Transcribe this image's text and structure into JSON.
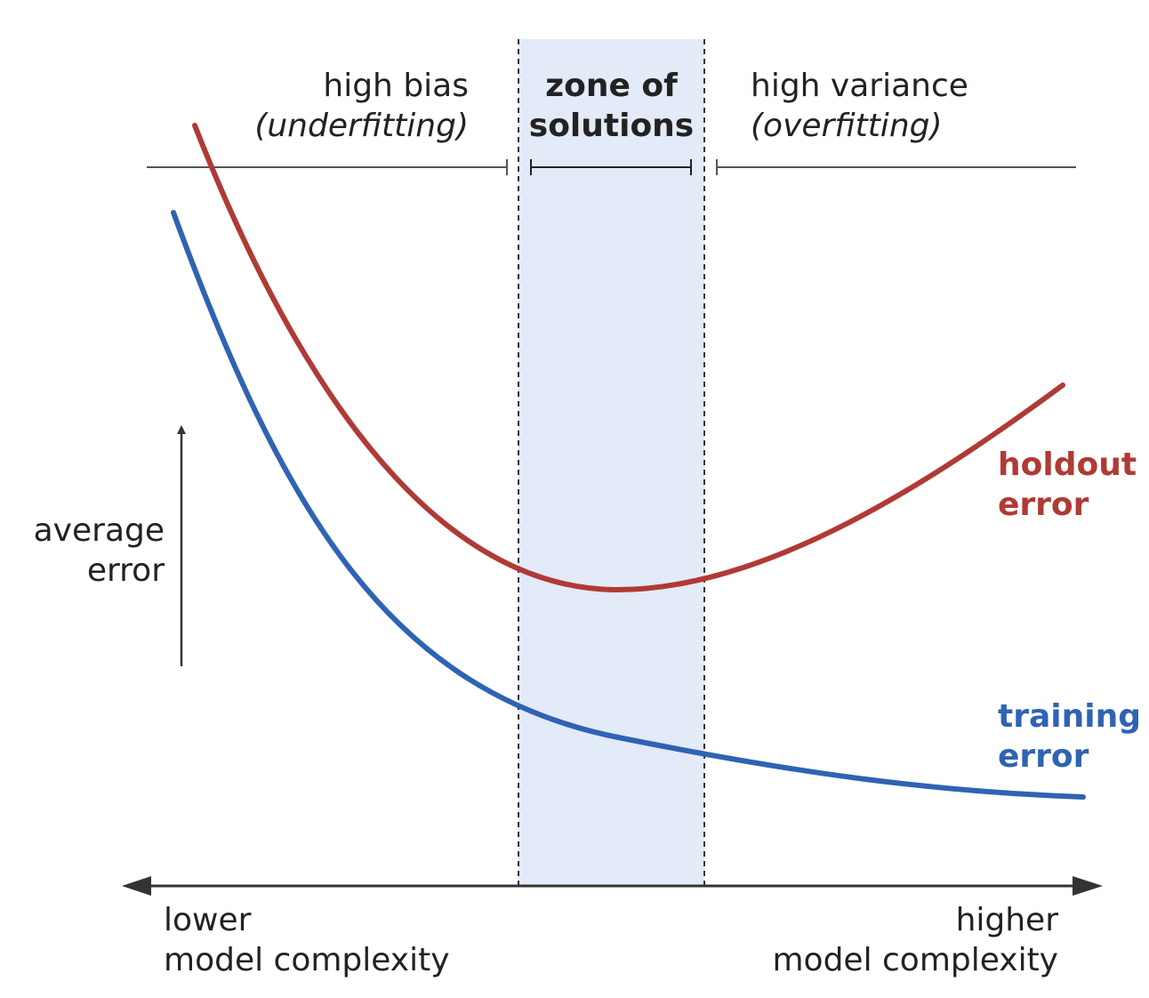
{
  "regions": {
    "left": {
      "line1": "high bias",
      "line2": "(underfitting)"
    },
    "center": {
      "line1": "zone of",
      "line2": "solutions"
    },
    "right": {
      "line1": "high variance",
      "line2": "(overfitting)"
    }
  },
  "y_axis": {
    "line1": "average",
    "line2": "error"
  },
  "x_axis": {
    "left": {
      "line1": "lower",
      "line2": "model complexity"
    },
    "right": {
      "line1": "higher",
      "line2": "model complexity"
    }
  },
  "curves": {
    "holdout": {
      "line1": "holdout",
      "line2": "error",
      "color": "#b03a35"
    },
    "training": {
      "line1": "training",
      "line2": "error",
      "color": "#2f63b3"
    }
  },
  "zone": {
    "fill": "#e3eaf8"
  }
}
